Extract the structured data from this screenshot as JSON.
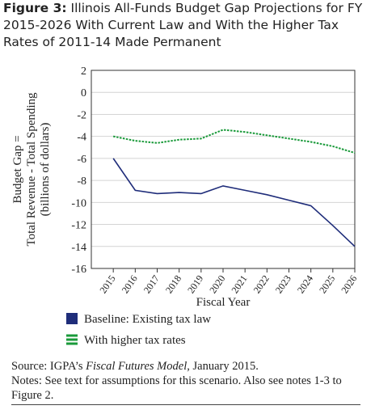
{
  "chart_data": {
    "type": "line",
    "title_label": "Figure 3:",
    "title": "Illinois All-Funds Budget Gap Projections for FY 2015-2026 With Current Law and With the Higher Tax Rates of 2011-14 Made Permanent",
    "y_label": [
      "Budget Gap =",
      "Total Revenue - Total Spending",
      "(billions of dollars)"
    ],
    "x_label": "Fiscal Year",
    "x": [
      2015,
      2016,
      2017,
      2018,
      2019,
      2020,
      2021,
      2022,
      2023,
      2024,
      2025,
      2026
    ],
    "xlim": [
      2014,
      2026
    ],
    "xticks": [
      2015,
      2016,
      2017,
      2018,
      2019,
      2020,
      2021,
      2022,
      2023,
      2024,
      2025,
      2026
    ],
    "ylim": [
      -16,
      2
    ],
    "yticks": [
      2,
      0,
      -2,
      -4,
      -6,
      -8,
      -10,
      -12,
      -14,
      -16
    ],
    "grid": true,
    "series": [
      {
        "name": "Baseline: Existing tax law",
        "color": "#1f2d7a",
        "style": "solid",
        "values": [
          -6.0,
          -8.9,
          -9.2,
          -9.1,
          -9.2,
          -8.5,
          -8.9,
          -9.3,
          -9.8,
          -10.3,
          -12.1,
          -14.0
        ]
      },
      {
        "name": "With higher tax rates",
        "color": "#1a9a3a",
        "style": "dotted",
        "values": [
          -4.0,
          -4.4,
          -4.6,
          -4.3,
          -4.2,
          -3.4,
          -3.6,
          -3.9,
          -4.2,
          -4.5,
          -4.9,
          -5.5
        ]
      }
    ],
    "source": [
      "Source: IGPA’s ",
      "Fiscal Futures Model",
      ", January 2015."
    ],
    "notes": "Notes: See text for assumptions for this scenario. Also see notes 1-3 to Figure 2."
  }
}
